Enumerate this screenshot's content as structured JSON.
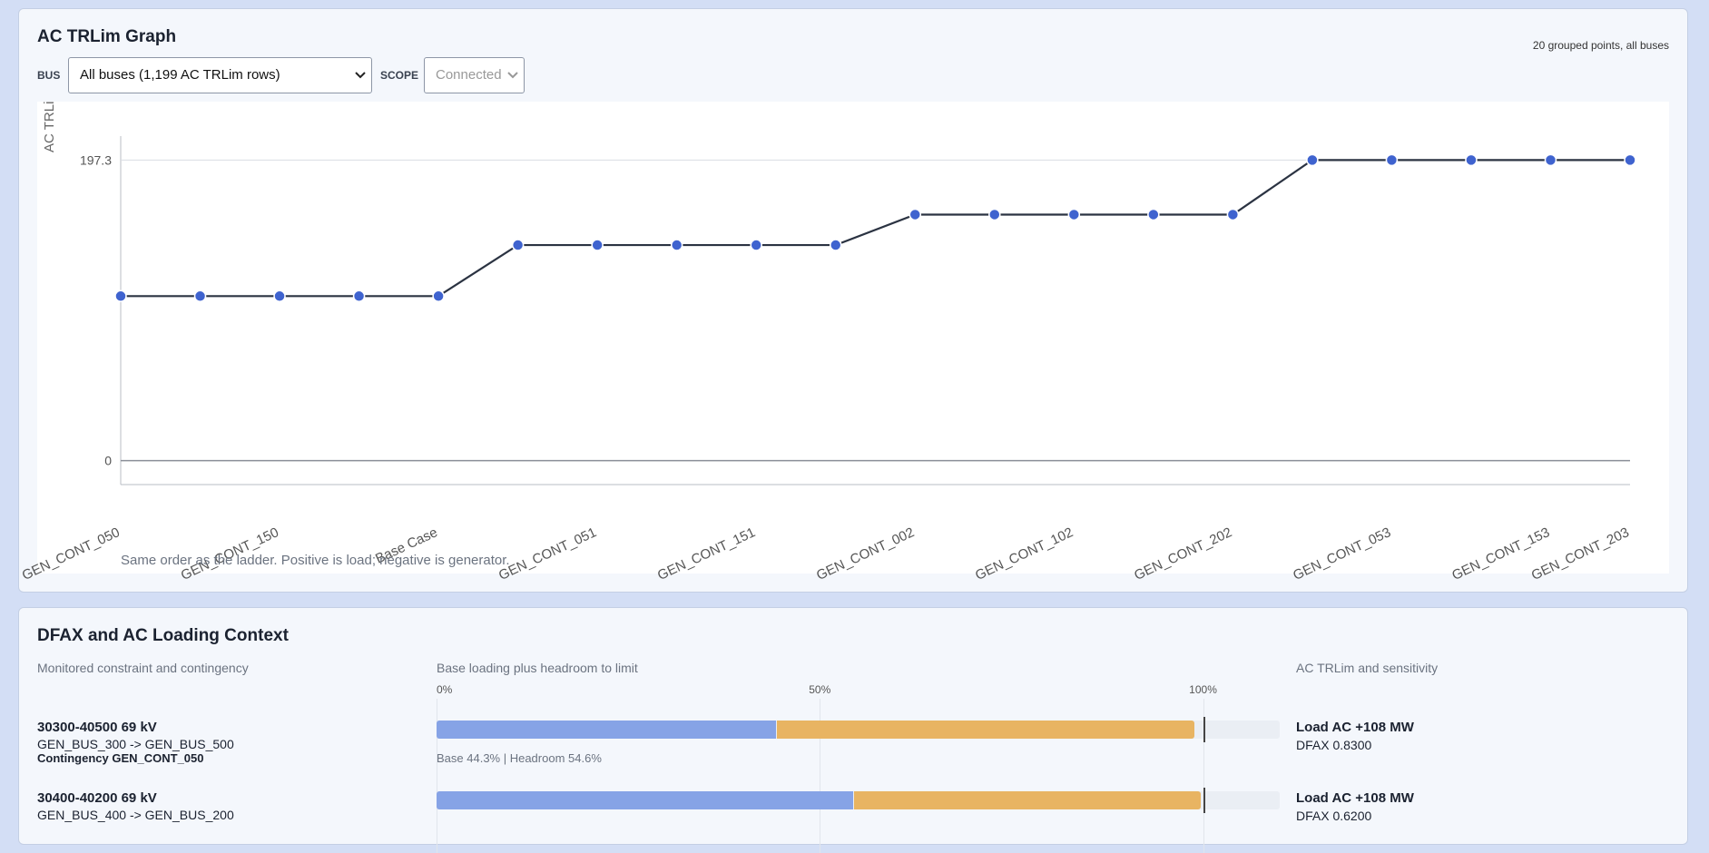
{
  "graph": {
    "title": "AC TRLim Graph",
    "note": "20 grouped points, all buses",
    "bus_label": "BUS",
    "bus_value": "All buses (1,199 AC TRLim rows)",
    "scope_label": "SCOPE",
    "scope_value": "Connected",
    "caption": "Same order as the ladder. Positive is load; negative is generator."
  },
  "chart_data": {
    "type": "line",
    "y_label": "AC TRLi",
    "categories": [
      "GEN_CONT_050",
      null,
      "GEN_CONT_150",
      null,
      "Base Case",
      null,
      "GEN_CONT_051",
      null,
      "GEN_CONT_151",
      null,
      "GEN_CONT_002",
      null,
      "GEN_CONT_102",
      null,
      "GEN_CONT_202",
      null,
      "GEN_CONT_053",
      null,
      "GEN_CONT_153",
      "GEN_CONT_203"
    ],
    "values": [
      108,
      108,
      108,
      108,
      108,
      141.5,
      141.5,
      141.5,
      141.5,
      141.5,
      161.5,
      161.5,
      161.5,
      161.5,
      161.5,
      197.3,
      197.3,
      197.3,
      197.3,
      197.3
    ],
    "ylim": [
      -15.7,
      213
    ],
    "yticks": [
      0,
      197.3
    ],
    "grid": true,
    "color": "#3f63cf",
    "line_color": "#2b3342"
  },
  "context": {
    "title": "DFAX and AC Loading Context",
    "columns": [
      "Monitored constraint and contingency",
      "Base loading plus headroom to limit",
      "AC TRLim and sensitivity"
    ],
    "scale_lim": [
      0,
      110
    ],
    "scale_ticks": [
      {
        "value": 0,
        "label": "0%"
      },
      {
        "value": 50,
        "label": "50%"
      },
      {
        "value": 100,
        "label": "100%"
      }
    ],
    "base_color": "#86a3e6",
    "headroom_color": "#e8b462",
    "rows": [
      {
        "title": "30300-40500 69 kV",
        "path": "GEN_BUS_300 -> GEN_BUS_500",
        "contingency": "Contingency GEN_CONT_050",
        "base": 44.3,
        "headroom": 54.6,
        "bar_label": "Base 44.3% | Headroom 54.6%",
        "trlim": "Load AC +108 MW",
        "dfax": "DFAX 0.8300"
      },
      {
        "title": "30400-40200 69 kV",
        "path": "GEN_BUS_400 -> GEN_BUS_200",
        "base": 54.3,
        "headroom": 45.4,
        "trlim": "Load AC +108 MW",
        "dfax": "DFAX 0.6200"
      }
    ]
  }
}
